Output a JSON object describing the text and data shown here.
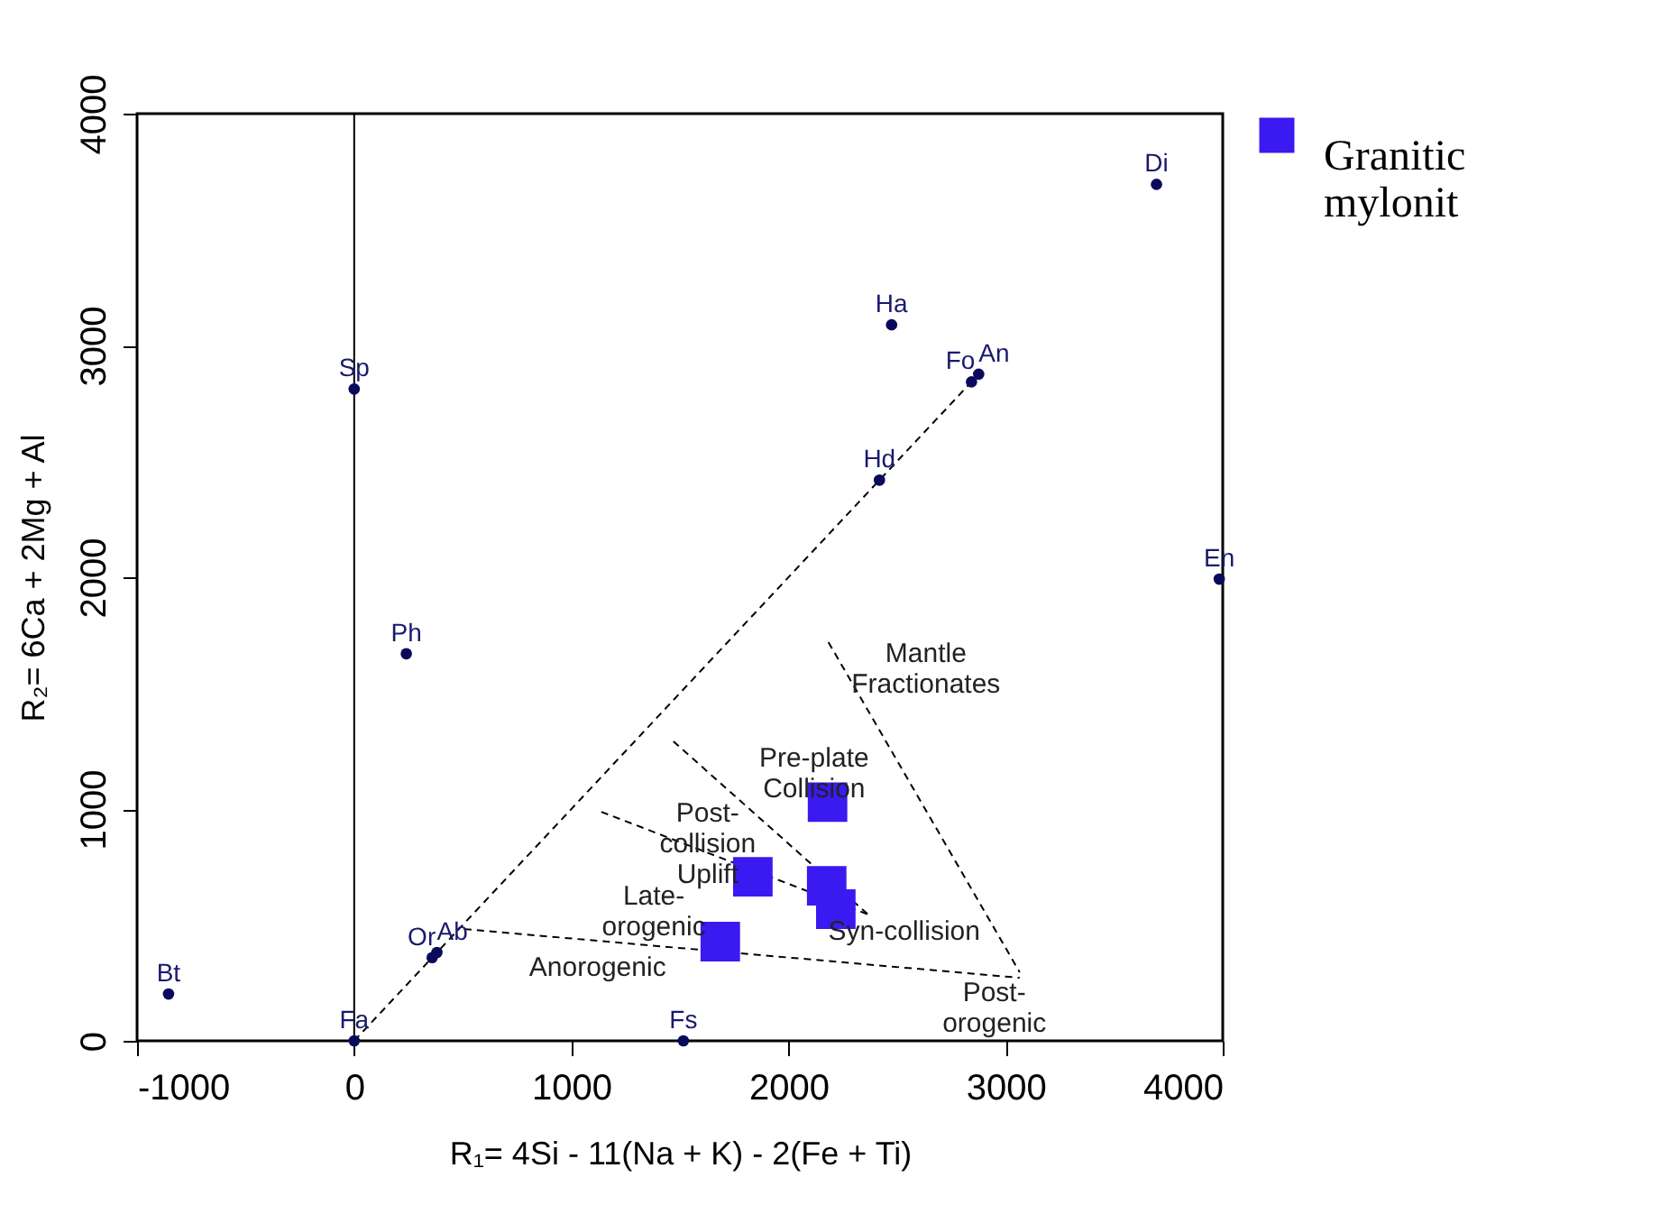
{
  "chart_data": {
    "type": "scatter",
    "xlabel": "R₁= 4Si - 11(Na + K) - 2(Fe + Ti)",
    "ylabel": "R₂= 6Ca + 2Mg + Al",
    "xlim": [
      -1000,
      4000
    ],
    "xticks": [
      -1000,
      0,
      1000,
      2000,
      3000,
      4000
    ],
    "ylim": [
      0,
      4000
    ],
    "yticks": [
      0,
      1000,
      2000,
      3000,
      4000
    ],
    "grid": false,
    "legend": "top right",
    "series": [
      {
        "type": "line",
        "color": "#000000",
        "line_style": "dashed",
        "marker": "none",
        "x": [
          0,
          2860
        ],
        "values": [
          0,
          2860
        ]
      },
      {
        "type": "line",
        "color": "#000000",
        "line_style": "dashed",
        "marker": "none",
        "x": [
          507,
          3065
        ],
        "values": [
          482,
          272
        ]
      },
      {
        "type": "line",
        "color": "#000000",
        "line_style": "dashed",
        "marker": "none",
        "x": [
          2184,
          3065
        ],
        "values": [
          1720,
          296
        ]
      },
      {
        "type": "line",
        "color": "#000000",
        "line_style": "dashed",
        "marker": "none",
        "x": [
          1470,
          2367
        ],
        "values": [
          1292,
          545
        ]
      },
      {
        "type": "line",
        "color": "#000000",
        "line_style": "dashed",
        "marker": "none",
        "x": [
          1138,
          2367
        ],
        "values": [
          988,
          545
        ]
      },
      {
        "color": "#0a0a5c",
        "marker": "circle",
        "x": [
          3695,
          2475,
          2843,
          2876,
          2419,
          0,
          240,
          3984,
          -855,
          0,
          1516,
          381,
          359
        ],
        "values": [
          3695,
          3089,
          2843,
          2876,
          2419,
          2812,
          1670,
          1992,
          202,
          0,
          0,
          381,
          359
        ]
      },
      {
        "name": "Granitic mylonit",
        "color": "#3a1af0",
        "marker": "square",
        "x": [
          2180,
          1836,
          2176,
          2218,
          1686
        ],
        "values": [
          1030,
          708,
          669,
          568,
          428
        ]
      }
    ],
    "ref_lines": [
      {
        "axis": "x",
        "value": 0,
        "color": "#000000",
        "line_style": "solid"
      }
    ],
    "annotations": [
      {
        "text": "Di",
        "x": 3695,
        "y": 3695
      },
      {
        "text": "Ha",
        "x": 2475,
        "y": 3089
      },
      {
        "text": "Fo",
        "x": 2843,
        "y": 2843
      },
      {
        "text": "An",
        "x": 2876,
        "y": 2876
      },
      {
        "text": "Hd",
        "x": 2419,
        "y": 2419
      },
      {
        "text": "Sp",
        "x": 0,
        "y": 2812
      },
      {
        "text": "Ph",
        "x": 240,
        "y": 1670
      },
      {
        "text": "En",
        "x": 3984,
        "y": 1992
      },
      {
        "text": "Bt",
        "x": -855,
        "y": 202
      },
      {
        "text": "Fa",
        "x": 0,
        "y": 0
      },
      {
        "text": "Fs",
        "x": 1516,
        "y": 0
      },
      {
        "text": "Ab",
        "x": 381,
        "y": 381
      },
      {
        "text": "Or",
        "x": 359,
        "y": 359
      },
      "Mantle\nFractionates",
      "Pre-plate\nCollision",
      "Post-\ncollision\nUplift",
      "Late-\norogenic",
      "Anorogenic",
      "Syn-collision",
      "Post-\norogenic"
    ]
  }
}
